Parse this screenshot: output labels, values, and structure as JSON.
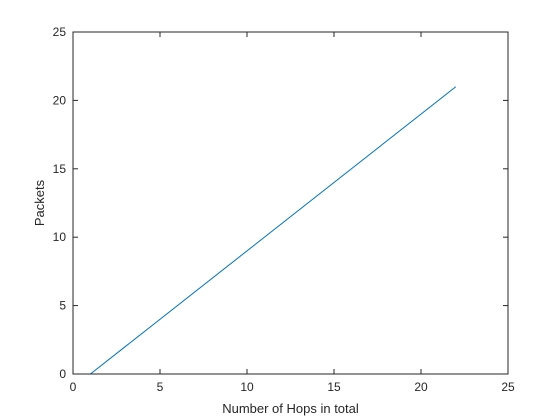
{
  "chart_data": {
    "type": "line",
    "title": "",
    "xlabel": "Number of Hops in total",
    "ylabel": "Packets",
    "xlim": [
      0,
      25
    ],
    "ylim": [
      0,
      25
    ],
    "xticks": [
      0,
      5,
      10,
      15,
      20,
      25
    ],
    "yticks": [
      0,
      5,
      10,
      15,
      20,
      25
    ],
    "grid": false,
    "box": true,
    "series": [
      {
        "name": "",
        "color": "#0072BD",
        "x": [
          1,
          22
        ],
        "y": [
          0,
          21
        ]
      }
    ]
  }
}
